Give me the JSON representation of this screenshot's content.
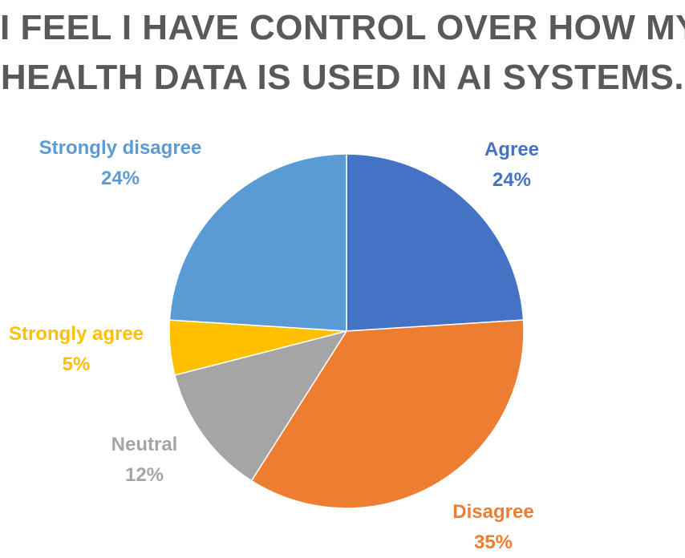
{
  "chart_data": {
    "type": "pie",
    "title_lines": [
      "I FEEL I HAVE CONTROL OVER HOW MY",
      "HEALTH DATA IS USED IN AI SYSTEMS."
    ],
    "title": "I FEEL I HAVE CONTROL OVER HOW MY HEALTH DATA IS USED IN AI SYSTEMS.",
    "legend": "none",
    "data_labels": "category name and percentage, outside slices",
    "start_angle_deg": 0,
    "direction": "clockwise from 12 o'clock",
    "slices": [
      {
        "label": "Agree",
        "value": 24,
        "display": "24%",
        "color": "#4472C4"
      },
      {
        "label": "Disagree",
        "value": 35,
        "display": "35%",
        "color": "#ED7D31"
      },
      {
        "label": "Neutral",
        "value": 12,
        "display": "12%",
        "color": "#A5A5A5"
      },
      {
        "label": "Strongly agree",
        "value": 5,
        "display": "5%",
        "color": "#FFC000"
      },
      {
        "label": "Strongly disagree",
        "value": 24,
        "display": "24%",
        "color": "#5B9BD5"
      }
    ]
  }
}
